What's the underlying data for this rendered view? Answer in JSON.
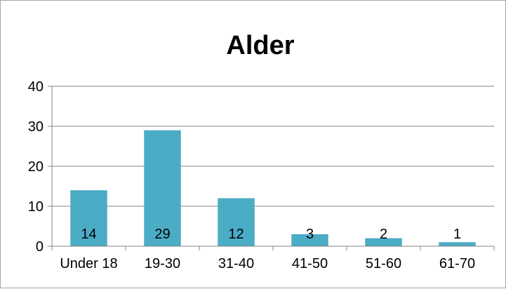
{
  "chart_data": {
    "type": "bar",
    "title": "Alder",
    "categories": [
      "Under 18",
      "19-30",
      "31-40",
      "41-50",
      "51-60",
      "61-70"
    ],
    "values": [
      14,
      29,
      12,
      3,
      2,
      1
    ],
    "data_labels": [
      "14",
      "29",
      "12",
      "3",
      "2",
      "1"
    ],
    "ylim": [
      0,
      40
    ],
    "yticks": [
      0,
      10,
      20,
      30,
      40
    ],
    "grid": true,
    "legend": "none",
    "bar_color": "#4bacc6"
  }
}
